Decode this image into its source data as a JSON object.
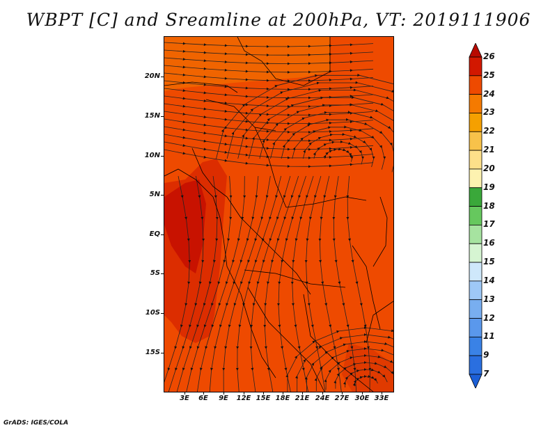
{
  "title": "WBPT [C] and Sreamline at 200hPa, VT: 2019111906",
  "footer": "GrADS: IGES/COLA",
  "map": {
    "lat_labels": [
      "20N",
      "15N",
      "10N",
      "5N",
      "EQ",
      "5S",
      "10S",
      "15S"
    ],
    "lon_labels": [
      "3E",
      "6E",
      "9E",
      "12E",
      "15E",
      "18E",
      "21E",
      "24E",
      "27E",
      "30E",
      "33E"
    ]
  },
  "colorbar": {
    "levels": [
      "7",
      "9",
      "11",
      "12",
      "13",
      "14",
      "15",
      "16",
      "17",
      "18",
      "19",
      "20",
      "21",
      "22",
      "23",
      "24",
      "25",
      "26"
    ],
    "colors": [
      "#1c5fd6",
      "#2a6fe0",
      "#3a82e6",
      "#5a98ec",
      "#78aef0",
      "#9ec8f6",
      "#cfe8fb",
      "#d6f5d2",
      "#a6e3a0",
      "#66c85e",
      "#3aa83a",
      "#fdf2b0",
      "#fde08a",
      "#f8c24a",
      "#f5a000",
      "#f57a00",
      "#ee4a00",
      "#d21800",
      "#b80a00"
    ]
  }
}
